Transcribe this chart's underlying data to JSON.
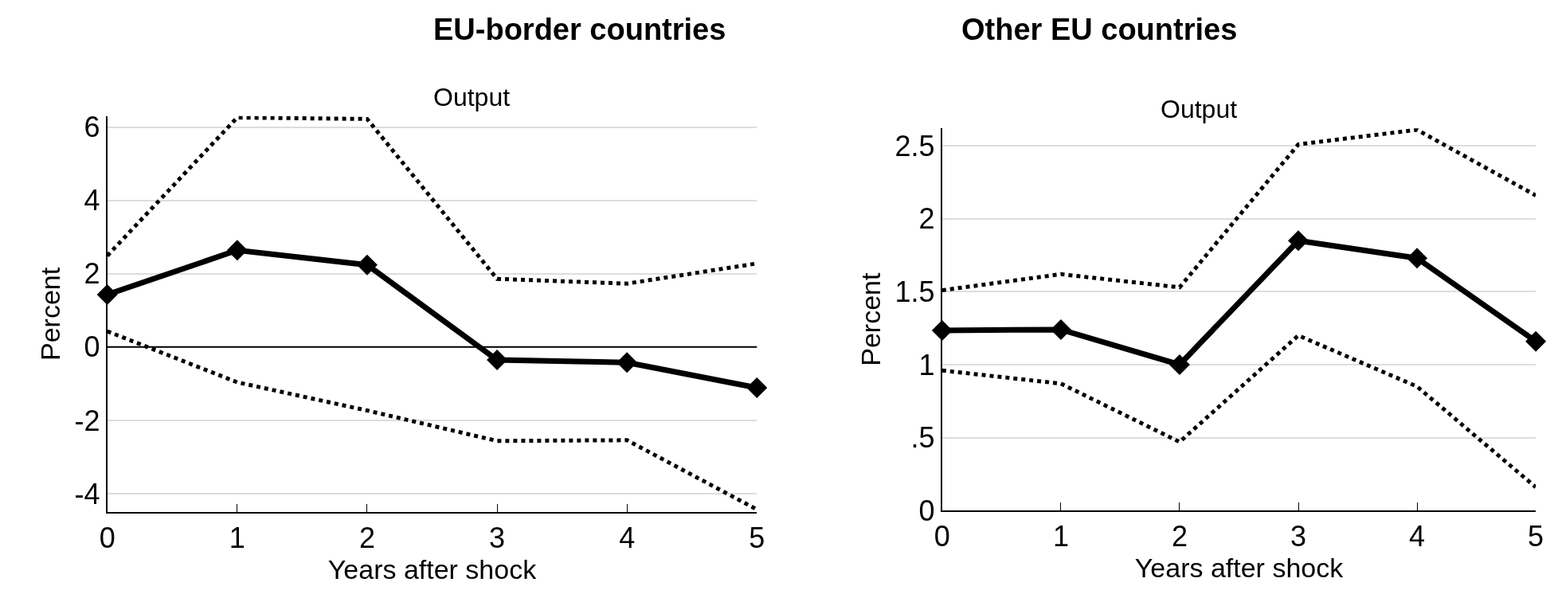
{
  "chart_data": [
    {
      "type": "line",
      "title": "EU-border countries",
      "subtitle": "Output",
      "xlabel": "Years after shock",
      "ylabel": "Percent",
      "x": [
        0,
        1,
        2,
        3,
        4,
        5
      ],
      "xlim": [
        0,
        5
      ],
      "xticks": [
        0,
        1,
        2,
        3,
        4,
        5
      ],
      "ylim": [
        -4.5,
        6.3
      ],
      "yticks": [
        -4,
        -2,
        0,
        2,
        4,
        6
      ],
      "grid": "y",
      "ref_lines": [
        {
          "axis": "y",
          "value": 0,
          "color": "#000000",
          "line_style": "solid"
        }
      ],
      "series": [
        {
          "color": "#000000",
          "values": [
            2.49,
            6.26,
            6.22,
            1.86,
            1.73,
            2.28
          ],
          "line_style": "dotted",
          "marker": "none"
        },
        {
          "color": "#000000",
          "values": [
            0.43,
            -0.96,
            -1.73,
            -2.56,
            -2.54,
            -4.43
          ],
          "line_style": "dotted",
          "marker": "none"
        },
        {
          "color": "#000000",
          "values": [
            1.43,
            2.64,
            2.24,
            -0.35,
            -0.42,
            -1.11
          ],
          "line_style": "solid",
          "marker": "diamond"
        }
      ]
    },
    {
      "type": "line",
      "title": "Other EU countries",
      "subtitle": "Output",
      "xlabel": "Years after shock",
      "ylabel": "Percent",
      "x": [
        0,
        1,
        2,
        3,
        4,
        5
      ],
      "xlim": [
        0,
        5
      ],
      "xticks": [
        0,
        1,
        2,
        3,
        4,
        5
      ],
      "ylim": [
        0,
        2.62
      ],
      "yticks": [
        0,
        {
          "value": 0.5,
          "label": ".5"
        },
        1,
        1.5,
        2,
        2.5
      ],
      "grid": "y",
      "series": [
        {
          "color": "#000000",
          "values": [
            1.51,
            1.62,
            1.53,
            2.51,
            2.61,
            2.16
          ],
          "line_style": "dotted",
          "marker": "none"
        },
        {
          "color": "#000000",
          "values": [
            0.96,
            0.87,
            0.47,
            1.2,
            0.85,
            0.16
          ],
          "line_style": "dotted",
          "marker": "none"
        },
        {
          "color": "#000000",
          "values": [
            1.235,
            1.24,
            1.0,
            1.85,
            1.73,
            1.16
          ],
          "line_style": "solid",
          "marker": "diamond"
        }
      ]
    }
  ]
}
